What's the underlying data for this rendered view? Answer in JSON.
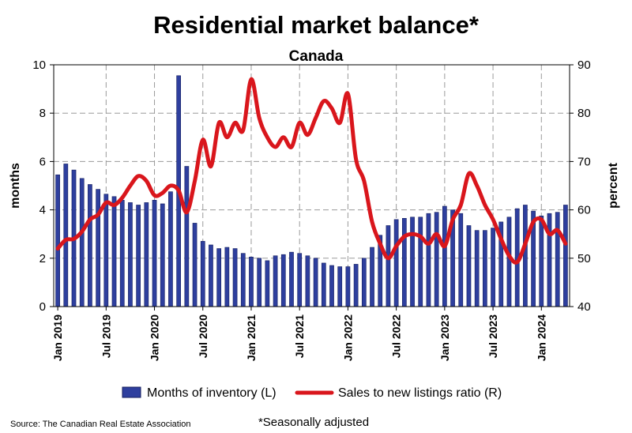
{
  "chart_data": {
    "type": "bar+line",
    "title": "Residential market balance*",
    "subtitle": "Canada",
    "ylabel_left": "months",
    "ylabel_right": "percent",
    "ylim_left": [
      0,
      10
    ],
    "ylim_right": [
      40,
      90
    ],
    "yticks_left": [
      "0",
      "2",
      "4",
      "6",
      "8",
      "10"
    ],
    "yticks_right": [
      "40",
      "50",
      "60",
      "70",
      "80",
      "90"
    ],
    "xtick_labels": [
      "Jan 2019",
      "Jul 2019",
      "Jan 2020",
      "Jul 2020",
      "Jan 2021",
      "Jul 2021",
      "Jan 2022",
      "Jul 2022",
      "Jan 2023",
      "Jul 2023",
      "Jan 2024"
    ],
    "xtick_positions": [
      0,
      6,
      12,
      18,
      24,
      30,
      36,
      42,
      48,
      54,
      60
    ],
    "grid": true,
    "legend_placement": "bottom",
    "colors": {
      "bars": "#2e3f9e",
      "bar_edge": "#141e5e",
      "line": "#d9161c",
      "grid": "#9a9a9a"
    },
    "series": [
      {
        "name": "Months of inventory (L)",
        "axis": "left",
        "kind": "bar",
        "values": [
          5.45,
          5.9,
          5.65,
          5.3,
          5.05,
          4.85,
          4.65,
          4.55,
          4.4,
          4.3,
          4.2,
          4.3,
          4.4,
          4.25,
          4.75,
          9.55,
          5.8,
          3.45,
          2.7,
          2.55,
          2.4,
          2.45,
          2.4,
          2.2,
          2.05,
          2.0,
          1.9,
          2.1,
          2.15,
          2.25,
          2.2,
          2.1,
          2.0,
          1.8,
          1.7,
          1.65,
          1.65,
          1.75,
          2.0,
          2.45,
          2.95,
          3.35,
          3.6,
          3.65,
          3.7,
          3.7,
          3.85,
          3.9,
          4.15,
          4.0,
          3.85,
          3.35,
          3.15,
          3.15,
          3.25,
          3.5,
          3.7,
          4.05,
          4.2,
          3.95,
          3.75,
          3.85,
          3.9,
          4.2
        ]
      },
      {
        "name": "Sales to new listings ratio (R)",
        "axis": "right",
        "kind": "line",
        "values": [
          52.0,
          53.8,
          54.0,
          55.5,
          58.0,
          59.0,
          61.5,
          61.0,
          62.5,
          65.0,
          67.0,
          66.0,
          63.0,
          63.5,
          65.0,
          64.0,
          59.5,
          66.0,
          74.5,
          69.0,
          78.0,
          75.0,
          78.0,
          76.5,
          87.0,
          79.0,
          75.0,
          73.0,
          75.0,
          73.0,
          78.0,
          75.5,
          79.0,
          82.5,
          81.0,
          78.0,
          84.0,
          70.5,
          66.0,
          57.5,
          53.0,
          50.0,
          52.5,
          54.5,
          55.0,
          54.5,
          53.0,
          55.0,
          52.5,
          58.0,
          61.0,
          67.5,
          65.0,
          61.0,
          58.0,
          54.0,
          50.5,
          49.2,
          53.0,
          57.5,
          58.0,
          55.0,
          55.8,
          53.0
        ]
      }
    ]
  },
  "footer": {
    "source": "Source: The Canadian Real Estate Association",
    "note": "*Seasonally adjusted"
  }
}
